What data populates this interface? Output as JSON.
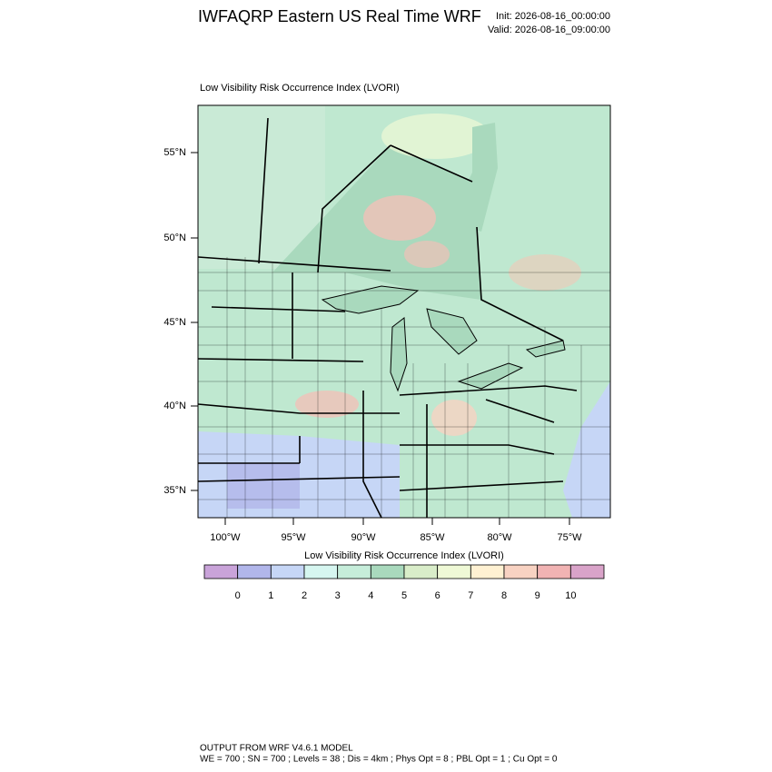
{
  "header": {
    "title": "IWFAQRP Eastern US Real Time WRF",
    "init": "Init: 2026-08-16_00:00:00",
    "valid": "Valid: 2026-08-16_09:00:00"
  },
  "map": {
    "title": "Low Visibility Risk Occurrence Index   (LVORI)",
    "lat_labels": [
      "55°N",
      "50°N",
      "45°N",
      "40°N",
      "35°N"
    ],
    "lon_labels": [
      "100°W",
      "95°W",
      "90°W",
      "85°W",
      "80°W",
      "75°W"
    ]
  },
  "colorbar": {
    "title": "Low Visibility Risk Occurrence Index  (LVORI)",
    "labels": [
      "0",
      "1",
      "2",
      "3",
      "4",
      "5",
      "6",
      "7",
      "8",
      "9",
      "10"
    ],
    "colors": [
      "#c9a3d9",
      "#b1b6ea",
      "#c6d6f6",
      "#d6f6f0",
      "#c6edda",
      "#a9d9bd",
      "#d9edc9",
      "#eff9d6",
      "#fff1d2",
      "#f8d2c2",
      "#f1b3b3",
      "#d9a3c9"
    ]
  },
  "footer": {
    "line1": "OUTPUT FROM WRF V4.6.1 MODEL",
    "line2": "WE = 700 ; SN = 700 ; Levels = 38 ; Dis = 4km ; Phys Opt = 8 ; PBL Opt = 1 ; Cu Opt = 0"
  }
}
